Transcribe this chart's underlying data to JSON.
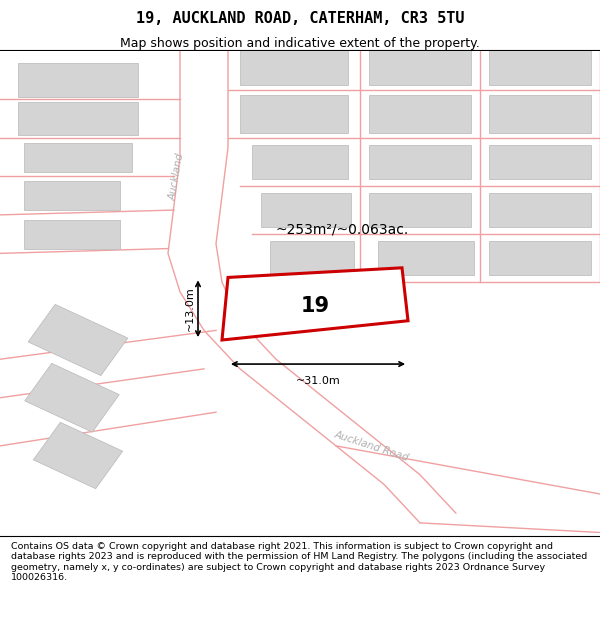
{
  "title": "19, AUCKLAND ROAD, CATERHAM, CR3 5TU",
  "subtitle": "Map shows position and indicative extent of the property.",
  "footer": "Contains OS data © Crown copyright and database right 2021. This information is subject to Crown copyright and database rights 2023 and is reproduced with the permission of HM Land Registry. The polygons (including the associated geometry, namely x, y co-ordinates) are subject to Crown copyright and database rights 2023 Ordnance Survey 100026316.",
  "area_label": "~253m²/~0.063ac.",
  "number_label": "19",
  "dim_width": "~31.0m",
  "dim_height": "~13.0m",
  "road_label_1": "Auckland",
  "road_label_2": "Auckland Road",
  "bg_color": "#ffffff",
  "map_bg": "#f2f2f2",
  "block_color": "#d4d4d4",
  "road_line_color": "#f0a0a0",
  "property_outline_color": "#cc0000",
  "property_fill": "#ffffff",
  "title_color": "#000000",
  "subtitle_color": "#000000",
  "footer_color": "#000000",
  "title_fontsize": 11,
  "subtitle_fontsize": 9,
  "footer_fontsize": 6.8
}
